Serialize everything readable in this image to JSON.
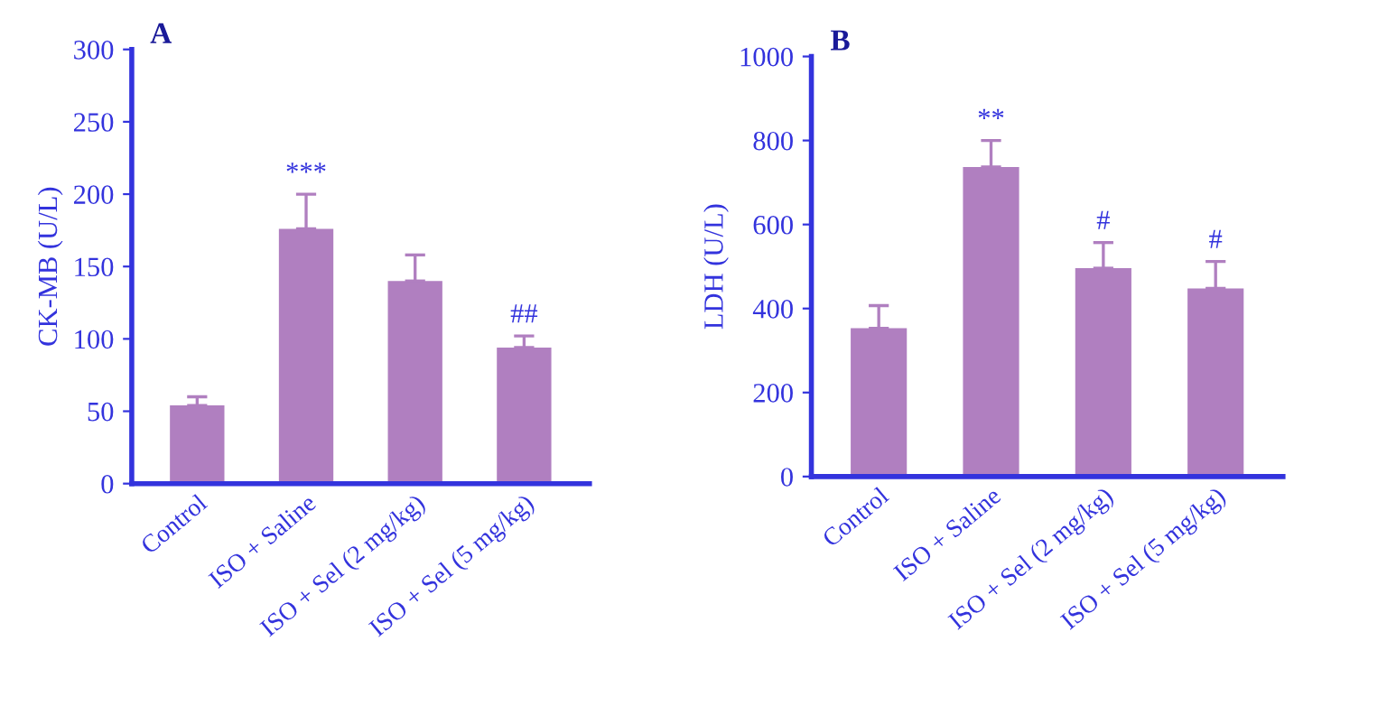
{
  "chart_data": [
    {
      "type": "bar",
      "title": "A",
      "ylabel": "CK-MB (U/L)",
      "categories": [
        "Control",
        "ISO + Saline",
        "ISO + Sel (2 mg/kg)",
        "ISO + Sel (5 mg/kg)"
      ],
      "values": [
        54,
        176,
        140,
        94
      ],
      "errors": [
        [
          54,
          60
        ],
        [
          176,
          200
        ],
        [
          140,
          158
        ],
        [
          94,
          102
        ]
      ],
      "color": "#b07fc0",
      "value_labels": [
        null,
        "***",
        null,
        "##"
      ],
      "ylim": [
        0,
        300
      ],
      "yticks": [
        0,
        50,
        100,
        150,
        200,
        250,
        300
      ]
    },
    {
      "type": "bar",
      "title": "B",
      "ylabel": "LDH (U/L)",
      "categories": [
        "Control",
        "ISO + Saline",
        "ISO + Sel (2 mg/kg)",
        "ISO + Sel (5 mg/kg)"
      ],
      "values": [
        353,
        737,
        496,
        448
      ],
      "errors": [
        [
          353,
          407
        ],
        [
          737,
          800
        ],
        [
          496,
          557
        ],
        [
          448,
          512
        ]
      ],
      "color": "#b07fc0",
      "value_labels": [
        null,
        "**",
        "#",
        "#"
      ],
      "ylim": [
        0,
        1000
      ],
      "yticks": [
        0,
        200,
        400,
        600,
        800,
        1000
      ]
    }
  ]
}
